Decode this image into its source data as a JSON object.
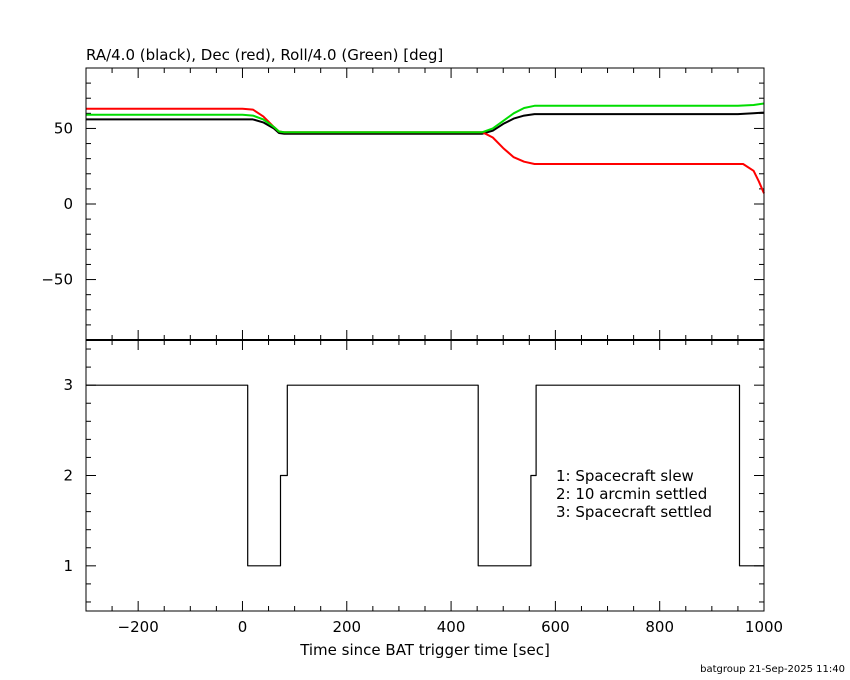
{
  "chart_data": [
    {
      "type": "line",
      "title": "RA/4.0 (black), Dec (red), Roll/4.0 (Green) [deg]",
      "xlim": [
        -300,
        1000
      ],
      "ylim": [
        -90,
        90
      ],
      "y_ticks": [
        -50,
        0,
        50
      ],
      "y_tick_labels": [
        "−50",
        "0",
        "50"
      ],
      "grid": false,
      "series": [
        {
          "color": "#000000",
          "x": [
            -300,
            0,
            20,
            40,
            60,
            70,
            80,
            100,
            200,
            300,
            400,
            460,
            480,
            500,
            520,
            540,
            560,
            600,
            700,
            800,
            900,
            950,
            980,
            1000
          ],
          "values": [
            56,
            56,
            56,
            54,
            50,
            47,
            46.5,
            46.5,
            46.5,
            46.5,
            46.5,
            46.5,
            48.5,
            53,
            56.5,
            58.5,
            59.5,
            59.5,
            59.5,
            59.5,
            59.5,
            59.5,
            60,
            60.5
          ]
        },
        {
          "color": "#ff0000",
          "x": [
            -300,
            0,
            20,
            40,
            60,
            70,
            80,
            100,
            200,
            300,
            400,
            460,
            480,
            500,
            520,
            540,
            560,
            600,
            700,
            800,
            900,
            960,
            980,
            990,
            1000
          ],
          "values": [
            63,
            63,
            62.5,
            58,
            51,
            48,
            47.5,
            47.5,
            47.5,
            47.5,
            47.5,
            47.5,
            44,
            37,
            31,
            28,
            26.5,
            26.5,
            26.5,
            26.5,
            26.5,
            26.5,
            22,
            15,
            7
          ]
        },
        {
          "color": "#00dd00",
          "x": [
            -300,
            0,
            20,
            40,
            60,
            70,
            80,
            100,
            200,
            300,
            400,
            460,
            480,
            500,
            520,
            540,
            560,
            600,
            700,
            800,
            900,
            950,
            980,
            1000
          ],
          "values": [
            59,
            59,
            58.5,
            56,
            51,
            48,
            47.5,
            47.5,
            47.5,
            47.5,
            47.5,
            47.5,
            50,
            55,
            60,
            63.5,
            65,
            65,
            65,
            65,
            65,
            65,
            65.5,
            66.5
          ]
        }
      ]
    },
    {
      "type": "line",
      "title": "",
      "xlabel": "Time since BAT trigger time [sec]",
      "xlim": [
        -300,
        1000
      ],
      "ylim": [
        0.5,
        3.5
      ],
      "x_ticks": [
        -200,
        0,
        200,
        400,
        600,
        800,
        1000
      ],
      "x_tick_labels": [
        "−200",
        "0",
        "200",
        "400",
        "600",
        "800",
        "1000"
      ],
      "y_ticks": [
        1,
        2,
        3
      ],
      "y_tick_labels": [
        "1",
        "2",
        "3"
      ],
      "grid": false,
      "series": [
        {
          "color": "#000000",
          "step": true,
          "x": [
            -300,
            10,
            10,
            73,
            73,
            86,
            86,
            452,
            452,
            553,
            553,
            563,
            563,
            953,
            953,
            1000
          ],
          "values": [
            3,
            3,
            1,
            1,
            2,
            2,
            3,
            3,
            1,
            1,
            2,
            2,
            3,
            3,
            1,
            1
          ]
        }
      ],
      "annotations": [
        "1: Spacecraft slew",
        "2: 10 arcmin settled",
        "3: Spacecraft settled"
      ]
    }
  ],
  "footer": "batgroup 21-Sep-2025 11:40"
}
